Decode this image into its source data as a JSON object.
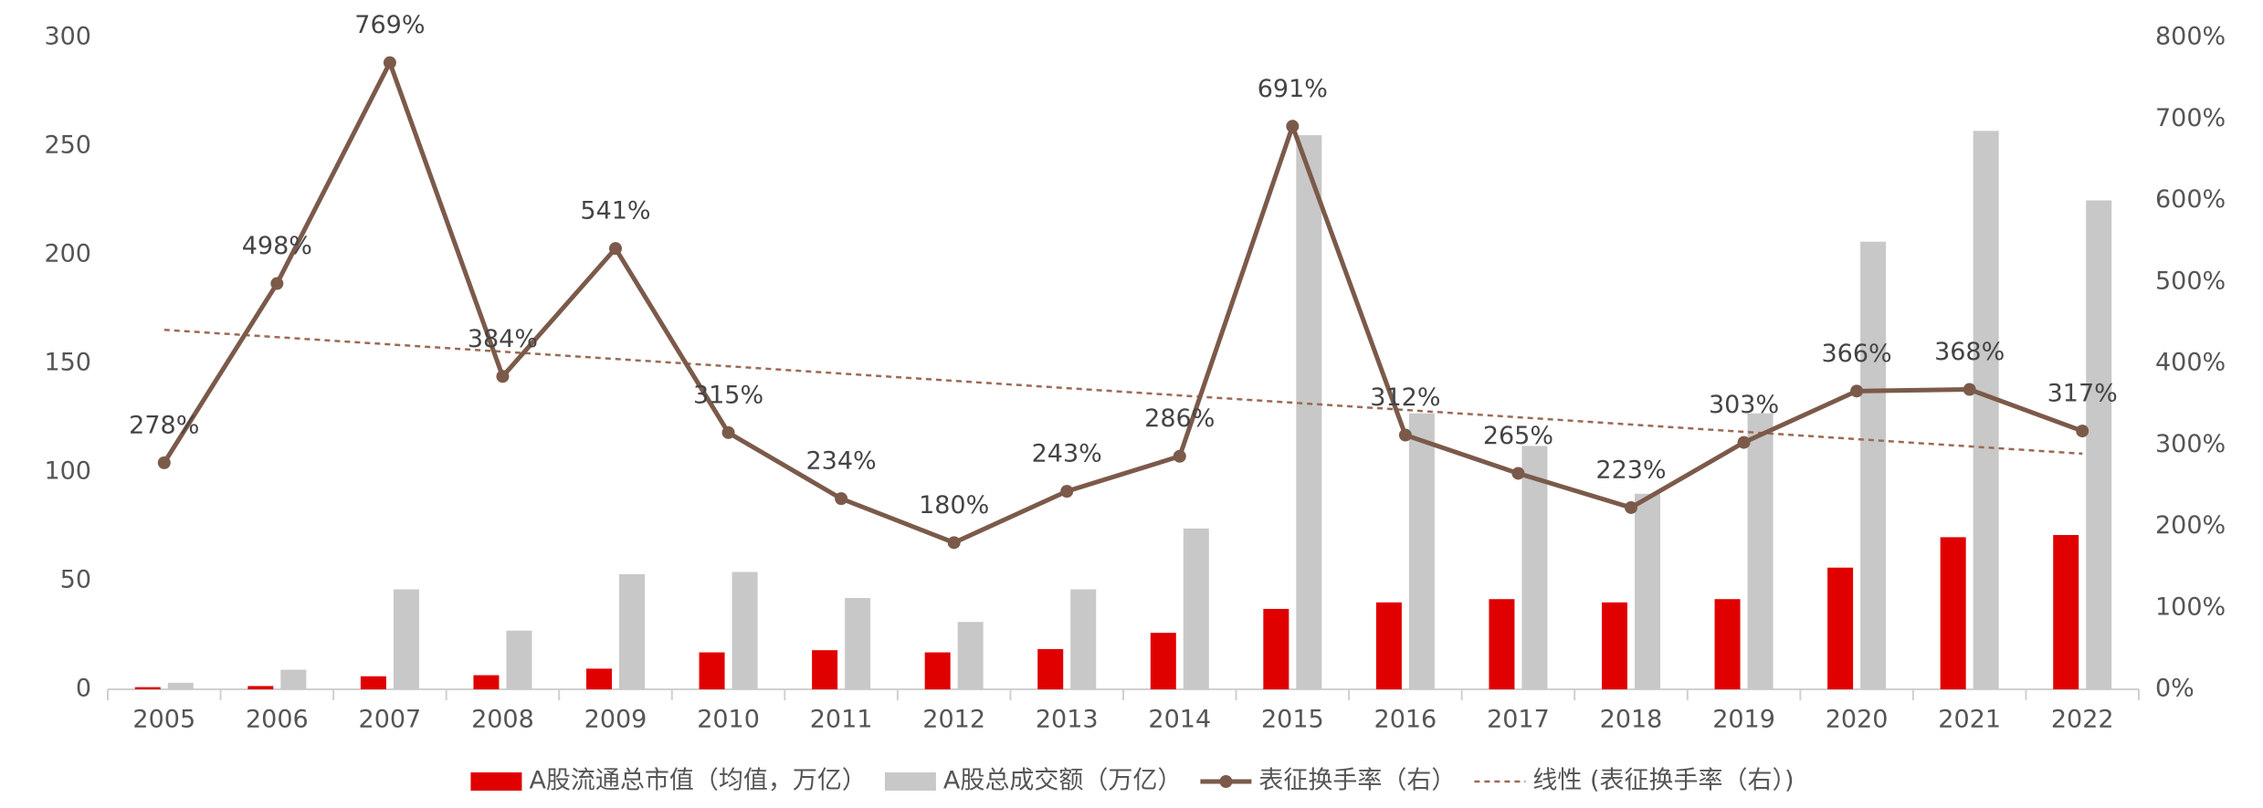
{
  "chart_data": {
    "type": "bar_line",
    "categories": [
      "2005",
      "2006",
      "2007",
      "2008",
      "2009",
      "2010",
      "2011",
      "2012",
      "2013",
      "2014",
      "2015",
      "2016",
      "2017",
      "2018",
      "2019",
      "2020",
      "2021",
      "2022"
    ],
    "series": [
      {
        "name": "A股流通总市值（均值，万亿）",
        "type": "bar",
        "color": "#e00000",
        "values": [
          1,
          1.5,
          6,
          6.5,
          9.5,
          17,
          18,
          17,
          18.5,
          26,
          37,
          40,
          41.5,
          40,
          41.5,
          56,
          70,
          71
        ]
      },
      {
        "name": "A股总成交额（万亿）",
        "type": "bar",
        "color": "#c8c8c8",
        "values": [
          3,
          9,
          46,
          27,
          53,
          54,
          42,
          31,
          46,
          74,
          255,
          127,
          112,
          90,
          127,
          206,
          257,
          225
        ]
      },
      {
        "name": "表征换手率（右）",
        "type": "line",
        "axis": "y2",
        "color": "#7b5a4a",
        "values": [
          278,
          498,
          769,
          384,
          541,
          315,
          234,
          180,
          243,
          286,
          691,
          312,
          265,
          223,
          303,
          366,
          368,
          317
        ],
        "value_labels": [
          "278%",
          "498%",
          "769%",
          "384%",
          "541%",
          "315%",
          "234%",
          "180%",
          "243%",
          "286%",
          "691%",
          "312%",
          "265%",
          "223%",
          "303%",
          "366%",
          "368%",
          "317%"
        ]
      },
      {
        "name": "线性 (表征换手率（右）)",
        "type": "trendline",
        "trend": "linear",
        "of_series": 2,
        "axis": "y2",
        "color": "#9b6a55"
      }
    ],
    "ylim": [
      0,
      300
    ],
    "yticks": [
      0,
      50,
      100,
      150,
      200,
      250,
      300
    ],
    "y2lim": [
      0,
      800
    ],
    "y2ticks": [
      {
        "value": 0,
        "label": "0%"
      },
      {
        "value": 100,
        "label": "100%"
      },
      {
        "value": 200,
        "label": "200%"
      },
      {
        "value": 300,
        "label": "300%"
      },
      {
        "value": 400,
        "label": "400%"
      },
      {
        "value": 500,
        "label": "500%"
      },
      {
        "value": 600,
        "label": "600%"
      },
      {
        "value": 700,
        "label": "700%"
      },
      {
        "value": 800,
        "label": "800%"
      }
    ],
    "legend": "bottom"
  }
}
